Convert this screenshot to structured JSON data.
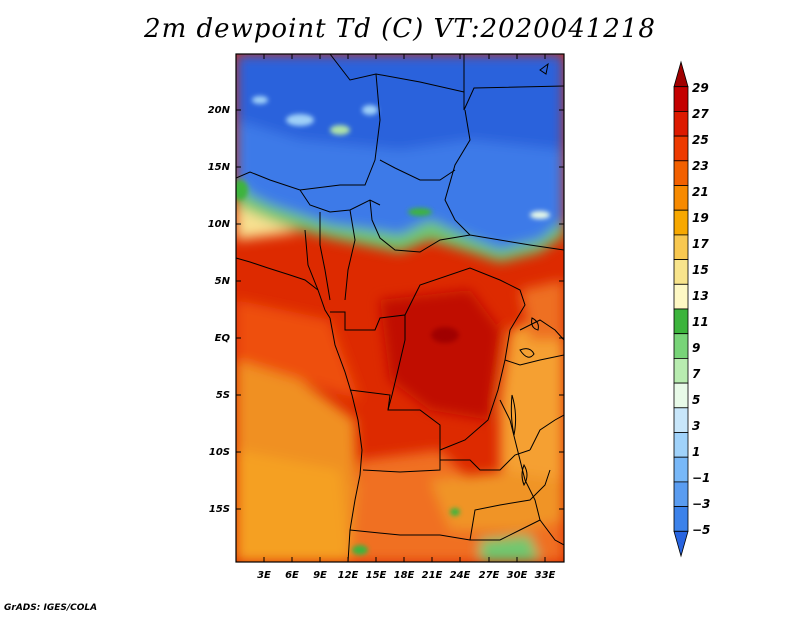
{
  "title": "2m dewpoint Td (C) VT:2020041218",
  "credit": "GrADS: IGES/COLA",
  "axes": {
    "lat_ticks": [
      "20N",
      "15N",
      "10N",
      "5N",
      "EQ",
      "5S",
      "10S",
      "15S"
    ],
    "lon_ticks": [
      "3E",
      "6E",
      "9E",
      "12E",
      "15E",
      "18E",
      "21E",
      "24E",
      "27E",
      "30E",
      "33E"
    ]
  },
  "colorbar": {
    "labels": [
      "29",
      "27",
      "25",
      "23",
      "21",
      "19",
      "17",
      "15",
      "13",
      "11",
      "9",
      "7",
      "5",
      "3",
      "1",
      "−1",
      "−3",
      "−5"
    ],
    "colors": [
      "#a00000",
      "#c40000",
      "#dd1a00",
      "#ee3a00",
      "#f26000",
      "#f78a00",
      "#f7a800",
      "#f8c850",
      "#f8e48c",
      "#fef8c4",
      "#3cb43c",
      "#78d478",
      "#b8ecb0",
      "#e8fae8",
      "#c8e6fa",
      "#a0d2fa",
      "#78b8f8",
      "#5a9cf0",
      "#3c82ea",
      "#2864e0"
    ]
  }
}
